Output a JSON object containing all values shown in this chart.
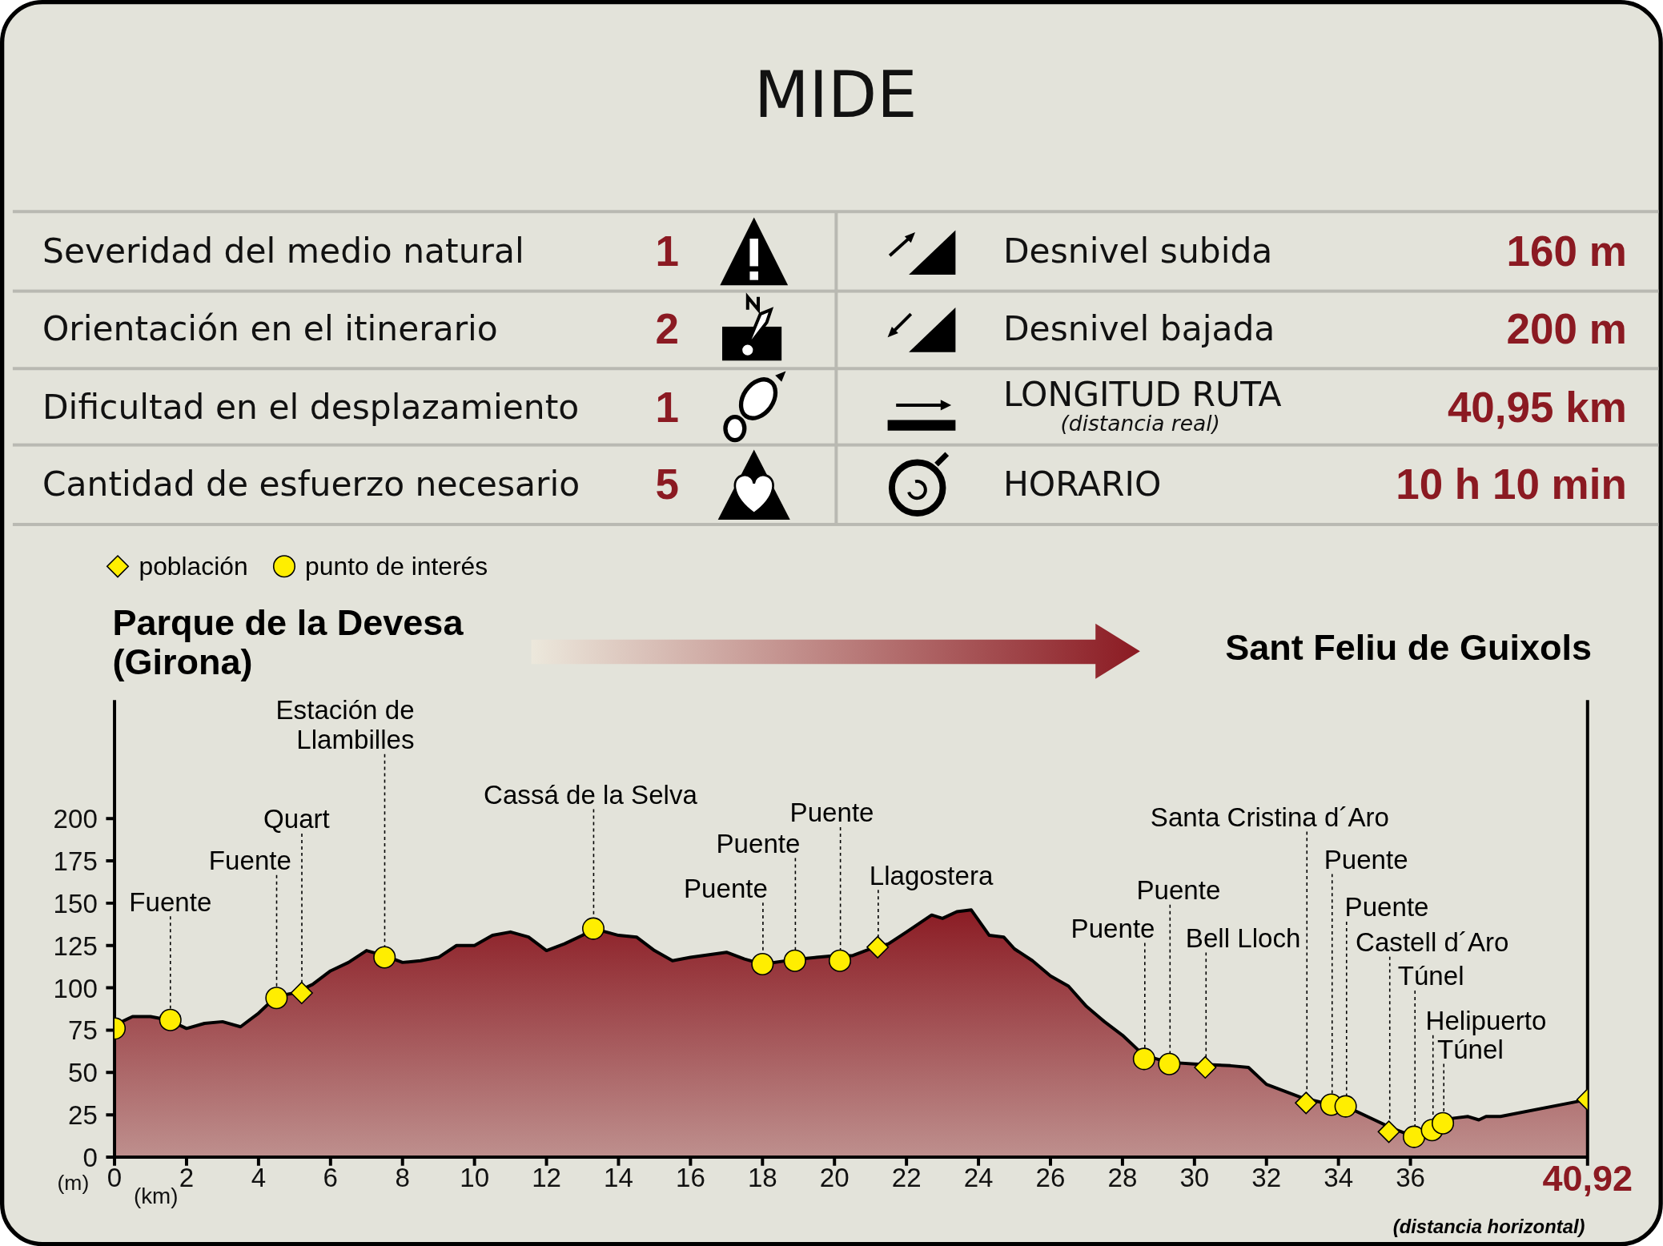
{
  "chart_data": [
    {
      "type": "other",
      "title": "MIDE",
      "annotations": [
        "Severidad del medio natural",
        "1",
        "Desnivel subida",
        "160 m",
        "Orientación en el itinerario",
        "2",
        "Desnivel bajada",
        "200 m",
        "Dificultad en el desplazamiento",
        "1",
        "LONGITUD RUTA",
        "40,95 km",
        "Cantidad de esfuerzo necesario",
        "5",
        "HORARIO",
        "10 h 10 min",
        "(distancia real)"
      ]
    },
    {
      "type": "area",
      "x": [
        0,
        0.5,
        1,
        1.5,
        2,
        2.5,
        3,
        3.5,
        4,
        4.5,
        5,
        5.5,
        6,
        6.5,
        7,
        7.5,
        8,
        8.5,
        9,
        9.5,
        10,
        10.5,
        11,
        11.5,
        12,
        12.5,
        13,
        13.3,
        14,
        14.5,
        15,
        15.5,
        16,
        17,
        17.5,
        18,
        19,
        19.5,
        20,
        20.5,
        21,
        21.5,
        22,
        22.7,
        23,
        23.4,
        23.8,
        24.3,
        24.7,
        25,
        25.5,
        26,
        26.5,
        27,
        27.5,
        28,
        28.6,
        29.3,
        30,
        31,
        31.5,
        32,
        33,
        33.8,
        34.2,
        35,
        35.5,
        36,
        36.5,
        36.9,
        37.2,
        37.6,
        37.9,
        38.1,
        38.5,
        40.92
      ],
      "series": [
        {
          "type": "area",
          "color": "#8b1c24",
          "values": [
            78,
            83,
            83,
            81,
            76,
            79,
            80,
            77,
            85,
            95,
            97,
            102,
            110,
            115,
            122,
            119,
            115,
            116,
            118,
            125,
            125,
            131,
            133,
            130,
            122,
            126,
            131,
            135,
            131,
            130,
            122,
            116,
            118,
            121,
            117,
            114,
            117,
            118,
            119,
            119,
            123,
            126,
            133,
            143,
            141,
            145,
            146,
            131,
            130,
            123,
            116,
            107,
            101,
            89,
            80,
            72,
            60,
            56,
            55,
            54,
            53,
            43,
            35,
            31,
            30,
            22,
            17,
            13,
            17,
            20,
            23,
            24,
            22,
            24,
            24,
            34
          ]
        },
        {
          "type": "scatter",
          "name": "población",
          "color": "#ffee00",
          "marker": "diamond",
          "x": [
            5.2,
            21.2,
            30.3,
            33.1,
            35.4,
            40.92
          ],
          "values": [
            97,
            124,
            53,
            32,
            15,
            34
          ]
        },
        {
          "type": "scatter",
          "name": "punto de interés",
          "color": "#ffee00",
          "marker": "circle",
          "x": [
            0,
            1.55,
            4.5,
            7.5,
            13.3,
            18,
            18.9,
            20.15,
            28.6,
            29.3,
            33.8,
            34.2,
            36.1,
            36.6,
            36.9
          ],
          "values": [
            76,
            81,
            94,
            118,
            135,
            114,
            116,
            116,
            58,
            55,
            31,
            30,
            12,
            16,
            20
          ]
        }
      ],
      "xlim": [
        0,
        40.92
      ],
      "xticks": [
        0,
        2,
        4,
        6,
        8,
        10,
        12,
        14,
        16,
        18,
        20,
        22,
        24,
        26,
        28,
        30,
        32,
        34,
        36,
        {
          "value": 40.92,
          "label": "40,92"
        }
      ],
      "ylim": [
        0,
        270
      ],
      "yticks": [
        0,
        25,
        50,
        75,
        100,
        125,
        150,
        175,
        200
      ],
      "xlabel": "(km)",
      "ylabel": "(m)",
      "legend": "top left",
      "annotations": [
        "Parque de la Devesa\n(Girona)",
        {
          "text": "Fuente",
          "x": 1.55,
          "y": 81
        },
        {
          "text": "Fuente",
          "x": 4.5,
          "y": 94
        },
        {
          "text": "Quart",
          "x": 5.2,
          "y": 97
        },
        {
          "text": "Estación de\nLlambilles",
          "x": 7.5,
          "y": 118
        },
        {
          "text": "Cassá de la Selva",
          "x": 13.3,
          "y": 135
        },
        {
          "text": "Puente",
          "x": 18,
          "y": 114
        },
        {
          "text": "Puente",
          "x": 18.9,
          "y": 116
        },
        {
          "text": "Puente",
          "x": 20.15,
          "y": 116
        },
        {
          "text": "Llagostera",
          "x": 21.2,
          "y": 124
        },
        "Sant Feliu de Guixols",
        {
          "text": "Puente",
          "x": 28.6,
          "y": 58
        },
        {
          "text": "Puente",
          "x": 29.3,
          "y": 55
        },
        {
          "text": "Bell Lloch",
          "x": 30.3,
          "y": 53
        },
        {
          "text": "Santa Cristina d´Aro",
          "x": 33.1,
          "y": 32
        },
        {
          "text": "Puente",
          "x": 33.8,
          "y": 31
        },
        {
          "text": "Puente",
          "x": 34.2,
          "y": 30
        },
        {
          "text": "Castell d´Aro",
          "x": 35.4,
          "y": 15
        },
        {
          "text": "Túnel",
          "x": 36.1,
          "y": 12
        },
        {
          "text": "Helipuerto",
          "x": 36.6,
          "y": 16
        },
        {
          "text": "Túnel",
          "x": 36.9,
          "y": 20
        },
        "(distancia horizontal)"
      ]
    }
  ]
}
